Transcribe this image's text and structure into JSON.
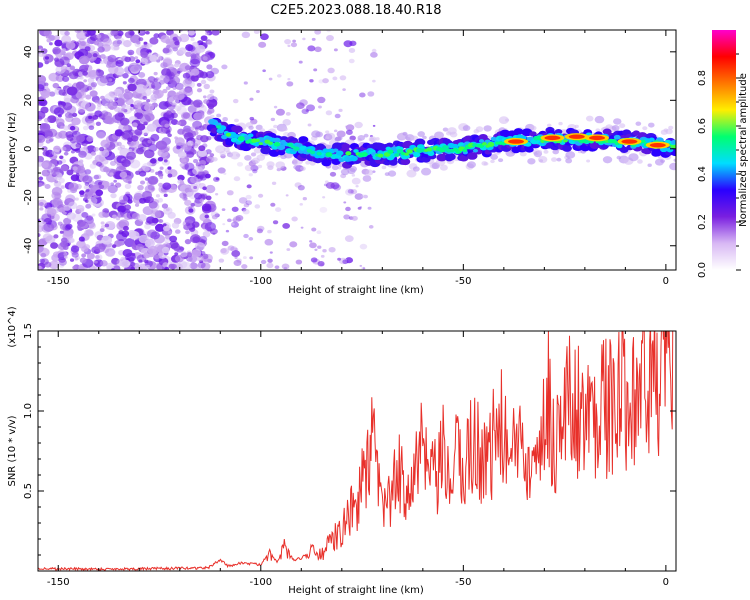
{
  "page": {
    "title": "C2E5.2023.088.18.40.R18"
  },
  "chart_data": [
    {
      "type": "heatmap",
      "title": "C2E5.2023.088.18.40.R18",
      "xlabel": "Height of straight line (km)",
      "ylabel": "Frequency (Hz)",
      "xlim": [
        -155,
        2.5
      ],
      "ylim": [
        -50,
        49
      ],
      "xticks": [
        -150,
        -100,
        -50,
        0
      ],
      "yticks": [
        -40,
        -20,
        0,
        20,
        40
      ],
      "colorbar": {
        "label": "Normalized spectral amplitude",
        "range": [
          0,
          1
        ],
        "ticks": [
          "0.0",
          "0.2",
          "0.4",
          "0.6",
          "0.8"
        ],
        "colors": [
          "#ffffff",
          "#d8b8f4",
          "#7a1fe0",
          "#2a00ff",
          "#00ddff",
          "#00ff70",
          "#ffee00",
          "#ff7700",
          "#ff0000",
          "#ff00cc"
        ]
      },
      "noise_region_km": [
        -155,
        -112
      ],
      "ridge": [
        {
          "x": -112,
          "f": 10
        },
        {
          "x": -108,
          "f": 5
        },
        {
          "x": -100,
          "f": 3
        },
        {
          "x": -90,
          "f": 0
        },
        {
          "x": -80,
          "f": -3
        },
        {
          "x": -70,
          "f": -2
        },
        {
          "x": -60,
          "f": -1
        },
        {
          "x": -50,
          "f": 0
        },
        {
          "x": -40,
          "f": 3
        },
        {
          "x": -30,
          "f": 4
        },
        {
          "x": -20,
          "f": 4
        },
        {
          "x": -10,
          "f": 3
        },
        {
          "x": 0,
          "f": 1.5
        },
        {
          "x": 2.5,
          "f": 1
        }
      ],
      "peaks": [
        {
          "x": -37,
          "f": 3
        },
        {
          "x": -28,
          "f": 4.5
        },
        {
          "x": -22,
          "f": 5
        },
        {
          "x": -17,
          "f": 4.5
        },
        {
          "x": -9,
          "f": 3
        },
        {
          "x": -2,
          "f": 1.5
        }
      ]
    },
    {
      "type": "line",
      "xlabel": "Height of straight line (km)",
      "ylabel": "SNR (10 * v/v)",
      "y_multiplier": "(x10^4)",
      "xlim": [
        -155,
        2.5
      ],
      "ylim": [
        0,
        15000
      ],
      "xticks": [
        -150,
        -100,
        -50,
        0
      ],
      "ytick_labels": [
        {
          "value": 5000,
          "label": "0.5"
        },
        {
          "value": 10000,
          "label": "1.0"
        },
        {
          "value": 15000,
          "label": "1.5"
        }
      ],
      "color": "#e8302a",
      "x": [
        -155,
        -140,
        -125,
        -113,
        -110,
        -108,
        -105,
        -100,
        -98,
        -96,
        -94,
        -92,
        -90,
        -88,
        -85,
        -82,
        -80,
        -78,
        -76,
        -74,
        -72,
        -71,
        -70,
        -68,
        -66,
        -64,
        -62,
        -60,
        -58,
        -56,
        -55,
        -54,
        -52,
        -50,
        -48,
        -46,
        -44,
        -42,
        -40,
        -38,
        -37,
        -36,
        -34,
        -32,
        -30,
        -29,
        -28,
        -26,
        -24,
        -22,
        -21,
        -20,
        -18,
        -16,
        -14,
        -12,
        -10,
        -9,
        -8,
        -6,
        -4,
        -2,
        0,
        1,
        2.5
      ],
      "y": [
        150,
        120,
        150,
        200,
        700,
        300,
        500,
        400,
        1200,
        600,
        1500,
        700,
        800,
        1200,
        1000,
        2000,
        2500,
        3500,
        4500,
        6500,
        8000,
        5000,
        4000,
        4500,
        6000,
        5500,
        6500,
        7500,
        5500,
        6000,
        7200,
        5500,
        7000,
        6500,
        8000,
        7500,
        7000,
        8500,
        9000,
        6000,
        8800,
        8500,
        7500,
        9500,
        8500,
        11500,
        8000,
        9000,
        10500,
        10000,
        10800,
        9000,
        10000,
        11000,
        10000,
        10500,
        11000,
        12800,
        11500,
        12000,
        11500,
        12000,
        12500,
        14000,
        14800
      ]
    }
  ]
}
